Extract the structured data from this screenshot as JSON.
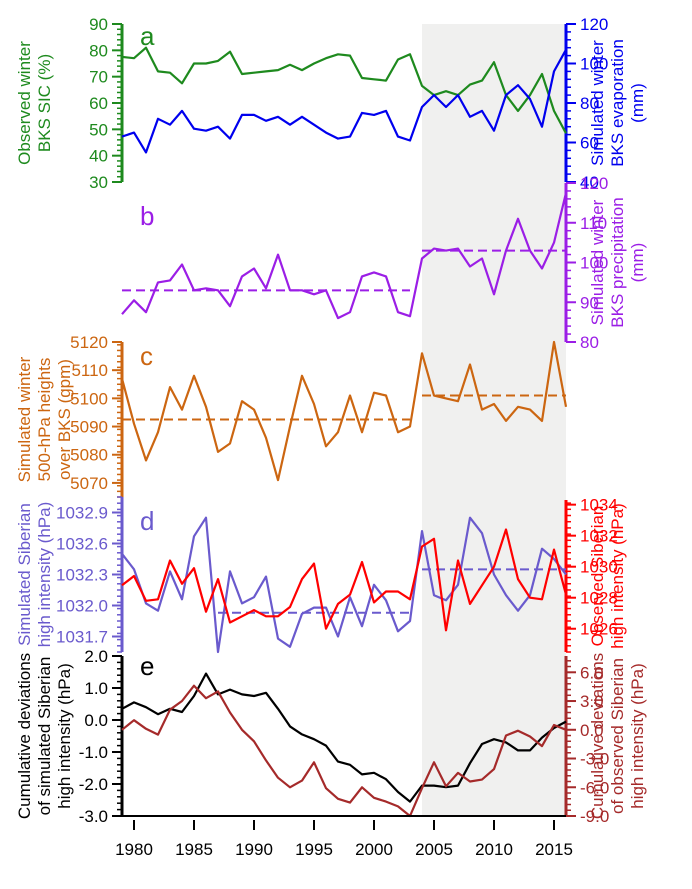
{
  "chart_data": {
    "type": "line",
    "x_axis": {
      "ticks": [
        1980,
        1985,
        1990,
        1995,
        2000,
        2005,
        2010,
        2015
      ],
      "tick_labels": [
        "1980",
        "1985",
        "1990",
        "1995",
        "2000",
        "2005",
        "2010",
        "2015"
      ],
      "range": [
        1979,
        2016
      ]
    },
    "shaded_period": [
      2004,
      2016
    ],
    "years": [
      1979,
      1980,
      1981,
      1982,
      1983,
      1984,
      1985,
      1986,
      1987,
      1988,
      1989,
      1990,
      1991,
      1992,
      1993,
      1994,
      1995,
      1996,
      1997,
      1998,
      1999,
      2000,
      2001,
      2002,
      2003,
      2004,
      2005,
      2006,
      2007,
      2008,
      2009,
      2010,
      2011,
      2012,
      2013,
      2014,
      2015,
      2016
    ],
    "panels": [
      {
        "label": "a",
        "left_axis": {
          "label_lines": [
            "Observed winter",
            "BKS SIC (%)"
          ],
          "range": [
            30,
            90
          ],
          "ticks": [
            30,
            40,
            50,
            60,
            70,
            80,
            90
          ],
          "color": "#1e8a1e"
        },
        "right_axis": {
          "label_lines": [
            "Simulated winter",
            "BKS evaporation",
            "(mm)"
          ],
          "range": [
            40,
            120
          ],
          "ticks": [
            40,
            60,
            80,
            100,
            120
          ],
          "color": "#0000ee"
        },
        "series": [
          {
            "name": "Observed winter BKS SIC",
            "axis": "left",
            "color": "#1e8a1e",
            "values": [
              77.5,
              77,
              81,
              72,
              71.5,
              67.5,
              75,
              75,
              76,
              79.5,
              71,
              71.5,
              72,
              72.5,
              74.5,
              72.5,
              75,
              77,
              78.5,
              78,
              69.5,
              69,
              68.5,
              76.5,
              78.5,
              66.5,
              63,
              64.5,
              63,
              67,
              68.5,
              75.5,
              63,
              57,
              63,
              71,
              57,
              48.5
            ]
          },
          {
            "name": "Simulated winter BKS evaporation",
            "axis": "right",
            "color": "#0000ee",
            "values": [
              63,
              65,
              55,
              72,
              69,
              76,
              67,
              66,
              68,
              62,
              74,
              74,
              71,
              73,
              69,
              73,
              69,
              65,
              62,
              63,
              75,
              74,
              76,
              63,
              61,
              78,
              84,
              78,
              84,
              73,
              76,
              66,
              84,
              89,
              82,
              68,
              96,
              107
            ]
          }
        ]
      },
      {
        "label": "b",
        "right_axis": {
          "label_lines": [
            "Simulated winter",
            "BKS precipitation",
            "(mm)"
          ],
          "range": [
            80,
            120
          ],
          "ticks": [
            80,
            90,
            100,
            110,
            120
          ],
          "color": "#9b1ee6"
        },
        "series": [
          {
            "name": "Simulated winter BKS precipitation",
            "axis": "right",
            "color": "#9b1ee6",
            "values": [
              87,
              90.5,
              87.5,
              95,
              95.5,
              99.5,
              93,
              93.5,
              93,
              89,
              96.5,
              98.5,
              93.5,
              102,
              93,
              93,
              92,
              93,
              86,
              87.5,
              96.5,
              97.5,
              96.5,
              87.5,
              86.5,
              101,
              103.5,
              103,
              103.5,
              99,
              101,
              92,
              103,
              111,
              103,
              98.5,
              105,
              117.5
            ]
          }
        ],
        "means": [
          {
            "from": 1979,
            "to": 2003,
            "value": 93
          },
          {
            "from": 2004,
            "to": 2016,
            "value": 103
          }
        ]
      },
      {
        "label": "c",
        "left_axis": {
          "label_lines": [
            "Simulated winter",
            "500-hPa heights",
            "over BKS (gpm)"
          ],
          "range": [
            5065,
            5120
          ],
          "ticks": [
            5070,
            5080,
            5090,
            5100,
            5110,
            5120
          ],
          "color": "#cc6611"
        },
        "series": [
          {
            "name": "Simulated winter 500-hPa heights over BKS",
            "axis": "left",
            "color": "#cc6611",
            "values": [
              5107,
              5091,
              5078,
              5088,
              5104,
              5096,
              5108,
              5097,
              5081,
              5084,
              5099,
              5096,
              5086,
              5071,
              5090,
              5108,
              5098,
              5083,
              5088,
              5101,
              5088,
              5102,
              5101,
              5088,
              5090,
              5116,
              5101,
              5100,
              5099,
              5112,
              5096,
              5098,
              5092,
              5097,
              5096,
              5092,
              5120,
              5097
            ]
          }
        ],
        "means": [
          {
            "from": 1979,
            "to": 2003,
            "value": 5092.5
          },
          {
            "from": 2004,
            "to": 2016,
            "value": 5101
          }
        ]
      },
      {
        "label": "d",
        "left_axis": {
          "label_lines": [
            "Simulated Siberian",
            "high intensity (hPa)"
          ],
          "range": [
            1031.6,
            1033.05
          ],
          "ticks": [
            1031.7,
            1032.0,
            1032.3,
            1032.6,
            1032.9
          ],
          "tick_labels": [
            "1031.7",
            "1032.0",
            "1032.3",
            "1032.6",
            "1032.9"
          ],
          "color": "#6a5acd"
        },
        "right_axis": {
          "label_lines": [
            "Observed Siberian",
            "high intensity (hPa)"
          ],
          "range": [
            1024.5,
            1034
          ],
          "ticks": [
            1026,
            1028,
            1030,
            1032,
            1034
          ],
          "color": "#ff0000"
        },
        "series": [
          {
            "name": "Simulated Siberian high intensity",
            "axis": "left",
            "color": "#6a5acd",
            "values": [
              1032.5,
              1032.35,
              1032.02,
              1031.95,
              1032.33,
              1032.06,
              1032.67,
              1032.85,
              1031.55,
              1032.33,
              1032.02,
              1032.08,
              1032.28,
              1031.68,
              1031.6,
              1031.92,
              1031.98,
              1031.98,
              1031.7,
              1032.08,
              1031.8,
              1032.2,
              1032.05,
              1031.75,
              1031.85,
              1032.72,
              1032.1,
              1032.05,
              1032.2,
              1032.85,
              1032.7,
              1032.3,
              1032.1,
              1031.95,
              1032.1,
              1032.55,
              1032.45,
              1032.3
            ]
          },
          {
            "name": "Observed Siberian high intensity",
            "axis": "right",
            "color": "#ff0000",
            "values": [
              1028.8,
              1029.4,
              1027.8,
              1027.9,
              1030.4,
              1028.9,
              1029.9,
              1027.1,
              1029.2,
              1026.4,
              1026.8,
              1027.2,
              1026.8,
              1026.8,
              1027.4,
              1029.2,
              1030.2,
              1026.0,
              1027.6,
              1028.2,
              1030.3,
              1027.7,
              1028.4,
              1028.4,
              1027.9,
              1031.3,
              1031.8,
              1025.9,
              1030.4,
              1027.6,
              1028.8,
              1030,
              1032.4,
              1029.2,
              1028,
              1027.9,
              1031.1,
              1028.2
            ]
          }
        ],
        "means": [
          {
            "from": 1987,
            "to": 2003,
            "value": 1031.93
          },
          {
            "from": 2004,
            "to": 2016,
            "value": 1032.35
          }
        ]
      },
      {
        "label": "e",
        "left_axis": {
          "label_lines": [
            "Cumulative deviations",
            "of simulated Siberian",
            "high intensity (hPa)"
          ],
          "range": [
            -3,
            2
          ],
          "ticks": [
            -3,
            -2,
            -1,
            0,
            1,
            2
          ],
          "tick_labels": [
            "-3.0",
            "-2.0",
            "-1.0",
            "0.0",
            "1.0",
            "2.0"
          ],
          "color": "#000000"
        },
        "right_axis": {
          "label_lines": [
            "Cumulative deviations",
            "of observed Siberian",
            "high intensity (hPa)"
          ],
          "range": [
            -9,
            9
          ],
          "ticks": [
            -9,
            -6,
            -3,
            0,
            3,
            6
          ],
          "tick_labels": [
            "-9.0",
            "-6.0",
            "-3.0",
            "0.0",
            "3.0",
            "6.0"
          ],
          "color": "#a52a2a"
        },
        "series": [
          {
            "name": "Cumulative deviations of simulated Siberian high intensity",
            "axis": "left",
            "color": "#000000",
            "values": [
              0.35,
              0.55,
              0.4,
              0.18,
              0.35,
              0.25,
              0.75,
              1.45,
              0.8,
              0.95,
              0.8,
              0.75,
              0.85,
              0.35,
              -0.2,
              -0.45,
              -0.6,
              -0.8,
              -1.3,
              -1.4,
              -1.7,
              -1.65,
              -1.85,
              -2.25,
              -2.55,
              -2.05,
              -2.05,
              -2.1,
              -2.05,
              -1.35,
              -0.75,
              -0.6,
              -0.7,
              -0.95,
              -0.95,
              -0.55,
              -0.25,
              -0.05
            ]
          },
          {
            "name": "Cumulative deviations of observed Siberian high intensity",
            "axis": "right",
            "color": "#a52a2a",
            "values": [
              0,
              1,
              0.1,
              -0.5,
              2.1,
              3,
              4.6,
              3.3,
              4,
              1.8,
              0,
              -1.2,
              -3.2,
              -5,
              -6,
              -5.3,
              -3.4,
              -6.1,
              -7.2,
              -7.6,
              -6,
              -7.1,
              -7.5,
              -8,
              -9,
              -6.1,
              -3.4,
              -5.9,
              -4.5,
              -5.4,
              -5.2,
              -4.1,
              -0.6,
              -0.1,
              -0.7,
              -1.7,
              0.5,
              0
            ]
          }
        ]
      }
    ]
  }
}
